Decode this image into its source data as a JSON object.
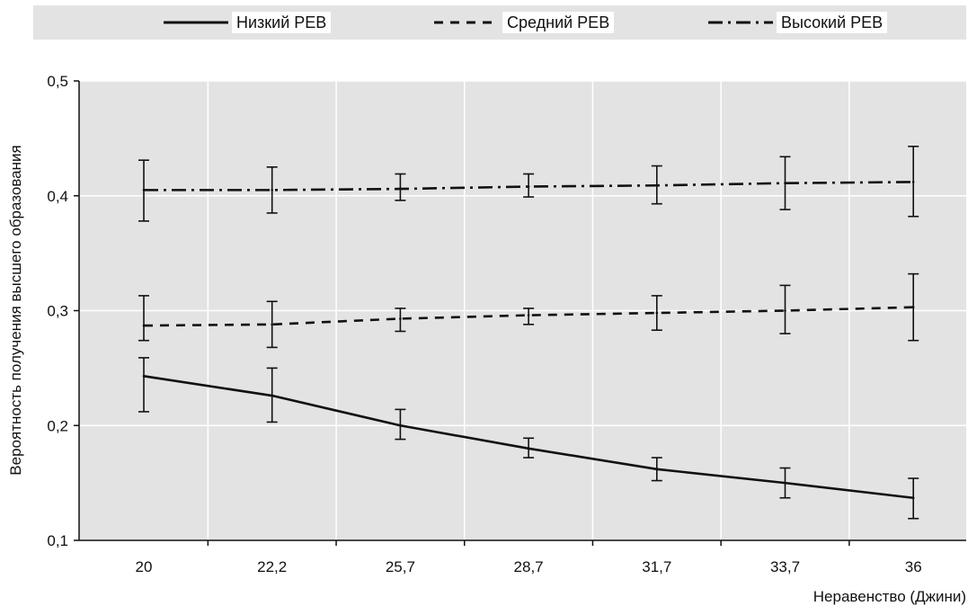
{
  "legend": {
    "items": [
      {
        "label": "Низкий РЕВ",
        "style": "solid"
      },
      {
        "label": "Средний РЕВ",
        "style": "dashed"
      },
      {
        "label": "Высокий РЕВ",
        "style": "dashdot"
      }
    ]
  },
  "chart_data": {
    "type": "line",
    "title": "",
    "xlabel": "Неравенство (Джини)",
    "ylabel": "Вероятность получения высшего образования",
    "categories": [
      "20",
      "22,2",
      "25,7",
      "28,7",
      "31,7",
      "33,7",
      "36"
    ],
    "ylim": [
      0.1,
      0.5
    ],
    "yticks": [
      0.1,
      0.2,
      0.3,
      0.4,
      0.5
    ],
    "ytick_labels": [
      "0,1",
      "0,2",
      "0,3",
      "0,4",
      "0,5"
    ],
    "grid": true,
    "legend_position": "top",
    "series": [
      {
        "name": "Низкий РЕВ",
        "style": "solid",
        "values": [
          0.243,
          0.226,
          0.2,
          0.18,
          0.162,
          0.15,
          0.137
        ],
        "lower": [
          0.212,
          0.203,
          0.188,
          0.172,
          0.152,
          0.137,
          0.119
        ],
        "upper": [
          0.259,
          0.25,
          0.214,
          0.189,
          0.172,
          0.163,
          0.154
        ]
      },
      {
        "name": "Средний РЕВ",
        "style": "dashed",
        "values": [
          0.287,
          0.288,
          0.293,
          0.296,
          0.298,
          0.3,
          0.303
        ],
        "lower": [
          0.274,
          0.268,
          0.282,
          0.288,
          0.283,
          0.28,
          0.274
        ],
        "upper": [
          0.313,
          0.308,
          0.302,
          0.302,
          0.313,
          0.322,
          0.332
        ]
      },
      {
        "name": "Высокий РЕВ",
        "style": "dashdot",
        "values": [
          0.405,
          0.405,
          0.406,
          0.408,
          0.409,
          0.411,
          0.412
        ],
        "lower": [
          0.378,
          0.385,
          0.396,
          0.399,
          0.393,
          0.388,
          0.382
        ],
        "upper": [
          0.431,
          0.425,
          0.419,
          0.419,
          0.426,
          0.434,
          0.443
        ]
      }
    ]
  }
}
